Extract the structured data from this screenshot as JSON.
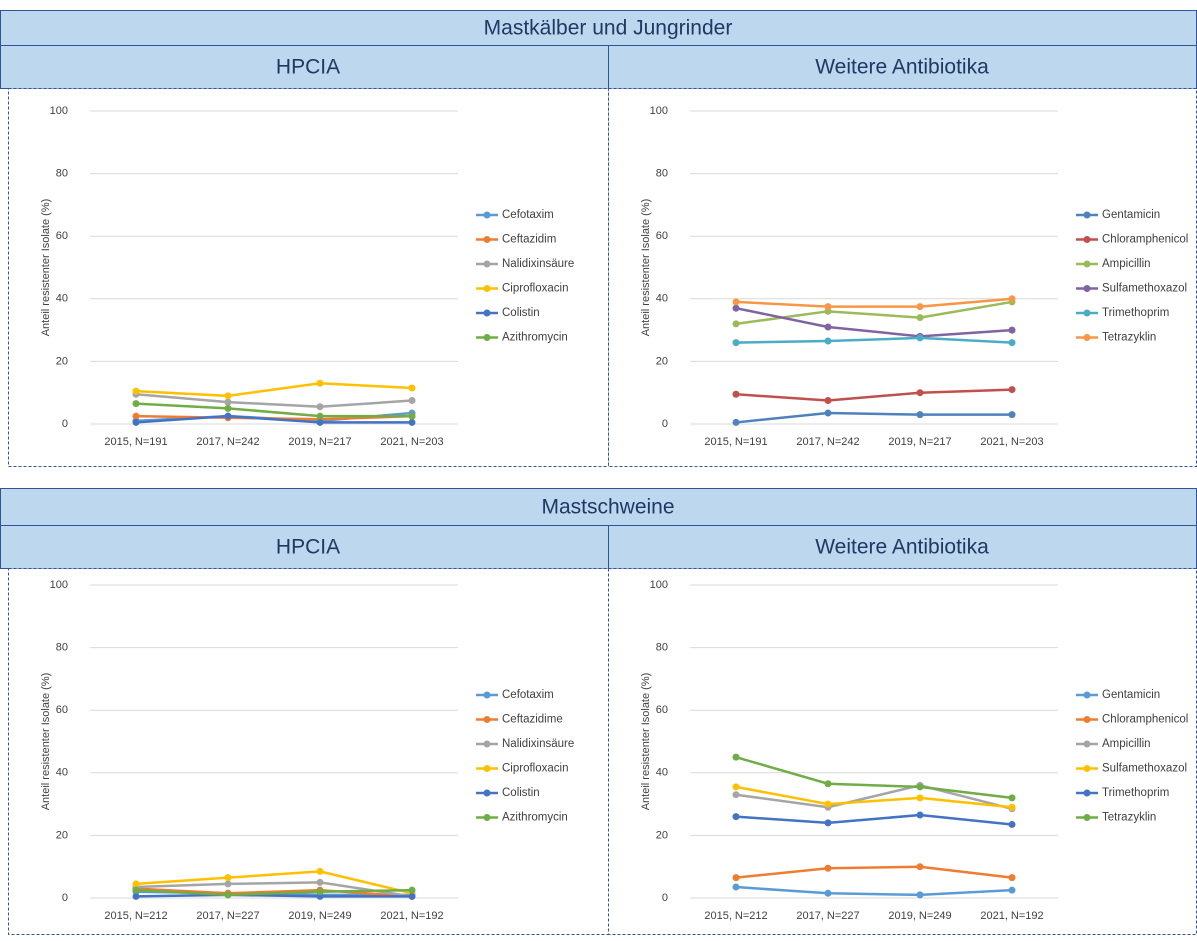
{
  "sections": [
    {
      "title": "Mastkälber und Jungrinder",
      "panels": [
        "HPCIA",
        "Weitere Antibiotika"
      ]
    },
    {
      "title": "Mastschweine",
      "panels": [
        "HPCIA",
        "Weitere Antibiotika"
      ]
    }
  ],
  "chart_data": [
    {
      "type": "line",
      "y_label": "Anteil resistenter Isolate (%)",
      "categories": [
        "2015, N=191",
        "2017, N=242",
        "2019, N=217",
        "2021, N=203"
      ],
      "ylim": [
        0,
        100
      ],
      "yticks": [
        0,
        20,
        40,
        60,
        80,
        100
      ],
      "grid": true,
      "legend": "right",
      "series": [
        {
          "name": "Cefotaxim",
          "color": "#5b9bd5",
          "values": [
            1,
            2.5,
            1,
            3.5
          ]
        },
        {
          "name": "Ceftazidim",
          "color": "#ed7d31",
          "values": [
            2.5,
            2,
            1.5,
            2.5
          ]
        },
        {
          "name": "Nalidixinsäure",
          "color": "#a5a5a5",
          "values": [
            9.5,
            7,
            5.5,
            7.5
          ]
        },
        {
          "name": "Ciprofloxacin",
          "color": "#ffc000",
          "values": [
            10.5,
            9,
            13,
            11.5
          ]
        },
        {
          "name": "Colistin",
          "color": "#4472c4",
          "values": [
            0.5,
            2.5,
            0.5,
            0.5
          ]
        },
        {
          "name": "Azithromycin",
          "color": "#70ad47",
          "values": [
            6.5,
            5,
            2.5,
            2.5
          ]
        }
      ]
    },
    {
      "type": "line",
      "y_label": "Anteil resistenter Isolate (%)",
      "categories": [
        "2015, N=191",
        "2017, N=242",
        "2019, N=217",
        "2021, N=203"
      ],
      "ylim": [
        0,
        100
      ],
      "yticks": [
        0,
        20,
        40,
        60,
        80,
        100
      ],
      "grid": true,
      "legend": "right",
      "series": [
        {
          "name": "Gentamicin",
          "color": "#4f81bd",
          "values": [
            0.5,
            3.5,
            3,
            3
          ]
        },
        {
          "name": "Chloramphenicol",
          "color": "#c0504d",
          "values": [
            9.5,
            7.5,
            10,
            11
          ]
        },
        {
          "name": "Ampicillin",
          "color": "#9bbb59",
          "values": [
            32,
            36,
            34,
            39
          ]
        },
        {
          "name": "Sulfamethoxazol",
          "color": "#8064a2",
          "values": [
            37,
            31,
            28,
            30
          ]
        },
        {
          "name": "Trimethoprim",
          "color": "#4bacc6",
          "values": [
            26,
            26.5,
            27.5,
            26
          ]
        },
        {
          "name": "Tetrazyklin",
          "color": "#f79646",
          "values": [
            39,
            37.5,
            37.5,
            40
          ]
        }
      ]
    },
    {
      "type": "line",
      "y_label": "Anteil resistenter Isolate (%)",
      "categories": [
        "2015, N=212",
        "2017, N=227",
        "2019, N=249",
        "2021, N=192"
      ],
      "ylim": [
        0,
        100
      ],
      "yticks": [
        0,
        20,
        40,
        60,
        80,
        100
      ],
      "grid": true,
      "legend": "right",
      "series": [
        {
          "name": "Cefotaxim",
          "color": "#5b9bd5",
          "values": [
            2,
            1.5,
            1,
            1
          ]
        },
        {
          "name": "Ceftazidime",
          "color": "#ed7d31",
          "values": [
            3,
            1.5,
            2.5,
            0.5
          ]
        },
        {
          "name": "Nalidixinsäure",
          "color": "#a5a5a5",
          "values": [
            3.5,
            4.5,
            5,
            0.5
          ]
        },
        {
          "name": "Ciprofloxacin",
          "color": "#ffc000",
          "values": [
            4.5,
            6.5,
            8.5,
            1.5
          ]
        },
        {
          "name": "Colistin",
          "color": "#4472c4",
          "values": [
            0.5,
            1,
            0.5,
            0.5
          ]
        },
        {
          "name": "Azithromycin",
          "color": "#70ad47",
          "values": [
            2.5,
            1,
            2,
            2.5
          ]
        }
      ]
    },
    {
      "type": "line",
      "y_label": "Anteil resistenter Isolate (%)",
      "categories": [
        "2015, N=212",
        "2017, N=227",
        "2019, N=249",
        "2021, N=192"
      ],
      "ylim": [
        0,
        100
      ],
      "yticks": [
        0,
        20,
        40,
        60,
        80,
        100
      ],
      "grid": true,
      "legend": "right",
      "series": [
        {
          "name": "Gentamicin",
          "color": "#5b9bd5",
          "values": [
            3.5,
            1.5,
            1,
            2.5
          ]
        },
        {
          "name": "Chloramphenicol",
          "color": "#ed7d31",
          "values": [
            6.5,
            9.5,
            10,
            6.5
          ]
        },
        {
          "name": "Ampicillin",
          "color": "#a5a5a5",
          "values": [
            33,
            29,
            36,
            28.5
          ]
        },
        {
          "name": "Sulfamethoxazol",
          "color": "#ffc000",
          "values": [
            35.5,
            30,
            32,
            29
          ]
        },
        {
          "name": "Trimethoprim",
          "color": "#4472c4",
          "values": [
            26,
            24,
            26.5,
            23.5
          ]
        },
        {
          "name": "Tetrazyklin",
          "color": "#70ad47",
          "values": [
            45,
            36.5,
            35.5,
            32
          ]
        }
      ]
    }
  ]
}
